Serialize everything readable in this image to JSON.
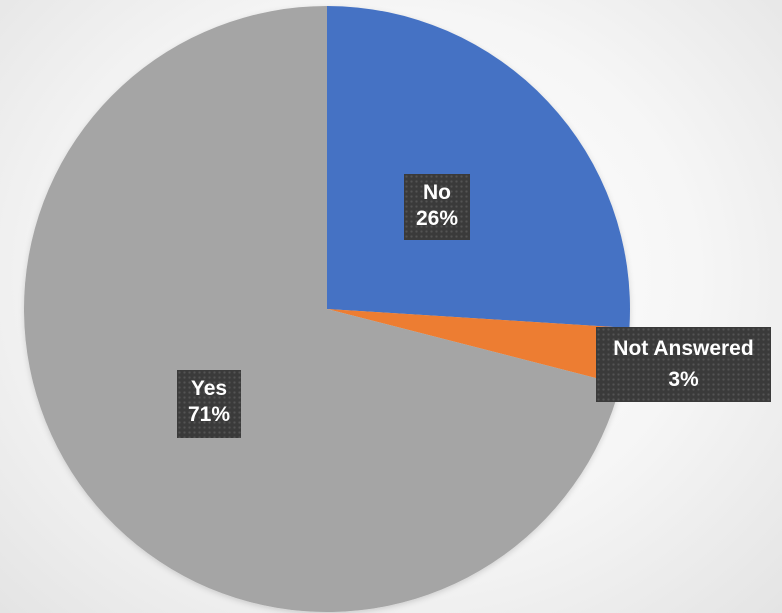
{
  "chart_data": {
    "type": "pie",
    "title": "",
    "slices": [
      {
        "label": "No",
        "value": 26,
        "display": "26%",
        "color": "#4472C4"
      },
      {
        "label": "Not Answered",
        "value": 3,
        "display": "3%",
        "color": "#ED7D31"
      },
      {
        "label": "Yes",
        "value": 71,
        "display": "71%",
        "color": "#A5A5A5"
      }
    ],
    "start_angle_deg": 0,
    "direction": "clockwise",
    "label_style": "dark boxed category and percentage",
    "legend": "none"
  }
}
